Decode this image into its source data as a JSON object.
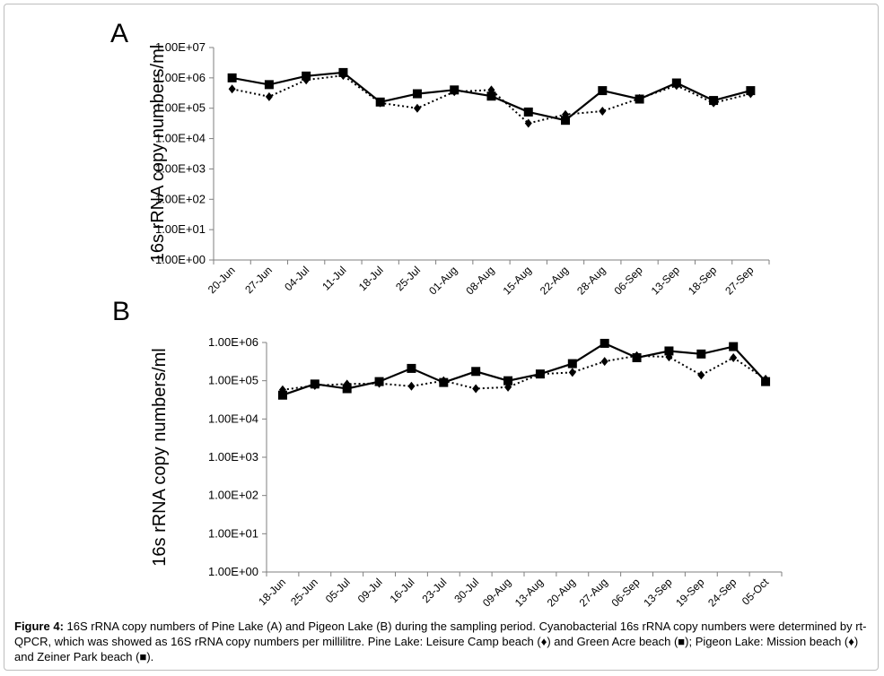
{
  "figure_label": "Figure 4:",
  "caption_text": " 16S rRNA copy numbers of Pine Lake (A) and Pigeon Lake (B) during the sampling period. Cyanobacterial 16s rRNA copy numbers were determined by rt-QPCR, which was showed as 16S rRNA copy numbers per millilitre. Pine Lake: Leisure Camp beach (♦) and Green Acre beach (■); Pigeon Lake: Mission beach (♦) and Zeiner Park beach (■).",
  "chart_data": [
    {
      "type": "line",
      "panel": "A",
      "ylabel": "16s rRNA copy numbers/ml",
      "yscale": "log",
      "ylim": [
        1,
        10000000
      ],
      "yticks": [
        "1.00E+00",
        "1.00E+01",
        "1.00E+02",
        "1.00E+03",
        "1.00E+04",
        "1.00E+05",
        "1.00E+06",
        "1.00E+07"
      ],
      "categories": [
        "20-Jun",
        "27-Jun",
        "04-Jul",
        "11-Jul",
        "18-Jul",
        "25-Jul",
        "01-Aug",
        "08-Aug",
        "15-Aug",
        "22-Aug",
        "28-Aug",
        "06-Sep",
        "13-Sep",
        "18-Sep",
        "27-Sep"
      ],
      "grid": false,
      "legend": "none",
      "series": [
        {
          "marker": "square",
          "style": "solid",
          "values": [
            1000000,
            600000,
            1150000,
            1500000,
            160000,
            300000,
            400000,
            250000,
            75000,
            40000,
            380000,
            200000,
            680000,
            180000,
            380000
          ]
        },
        {
          "marker": "diamond",
          "style": "dotted",
          "values": [
            430000,
            240000,
            850000,
            1200000,
            150000,
            100000,
            350000,
            400000,
            32000,
            62000,
            80000,
            210000,
            560000,
            150000,
            300000
          ]
        }
      ]
    },
    {
      "type": "line",
      "panel": "B",
      "ylabel": "16s rRNA copy numbers/ml",
      "yscale": "log",
      "ylim": [
        1,
        1000000
      ],
      "yticks": [
        "1.00E+00",
        "1.00E+01",
        "1.00E+02",
        "1.00E+03",
        "1.00E+04",
        "1.00E+05",
        "1.00E+06"
      ],
      "categories": [
        "18-Jun",
        "25-Jun",
        "05-Jul",
        "09-Jul",
        "16-Jul",
        "23-Jul",
        "30-Jul",
        "09-Aug",
        "13-Aug",
        "20-Aug",
        "27-Aug",
        "06-Sep",
        "13-Sep",
        "19-Sep",
        "24-Sep",
        "05-Oct"
      ],
      "grid": false,
      "legend": "none",
      "series": [
        {
          "marker": "square",
          "style": "solid",
          "values": [
            42000,
            82000,
            62000,
            95000,
            210000,
            90000,
            175000,
            100000,
            150000,
            280000,
            950000,
            400000,
            600000,
            500000,
            780000,
            95000
          ]
        },
        {
          "marker": "diamond",
          "style": "dotted",
          "values": [
            58000,
            75000,
            82000,
            85000,
            72000,
            100000,
            62000,
            68000,
            150000,
            165000,
            320000,
            450000,
            420000,
            140000,
            400000,
            110000
          ]
        }
      ]
    }
  ]
}
